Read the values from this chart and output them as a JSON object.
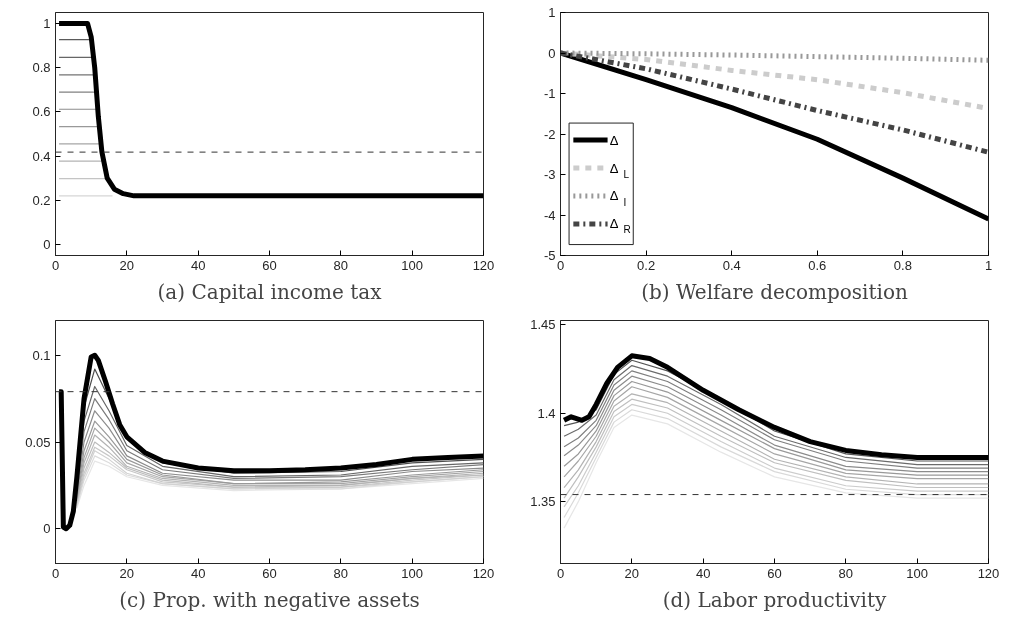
{
  "chart_data": [
    {
      "type": "line",
      "title": "(a) Capital income tax",
      "xlim": [
        0,
        120
      ],
      "ylim": [
        -0.05,
        1.05
      ],
      "xticks": [
        0,
        20,
        40,
        60,
        80,
        100,
        120
      ],
      "yticks": [
        0,
        0.2,
        0.4,
        0.6,
        0.8,
        1
      ],
      "grid": false,
      "legend": false,
      "line_style": "solid",
      "ref_lines": [
        {
          "axis": "y",
          "value": 0.418,
          "color": "#333333",
          "line_style": "dashed"
        }
      ],
      "series": [
        {
          "color": "#5a5a5a",
          "x": [
            1,
            10.1
          ],
          "values": [
            0.927,
            0.927
          ]
        },
        {
          "color": "#666666",
          "x": [
            1,
            10.6
          ],
          "values": [
            0.847,
            0.847
          ]
        },
        {
          "color": "#737373",
          "x": [
            1,
            11.1
          ],
          "values": [
            0.768,
            0.768
          ]
        },
        {
          "color": "#808080",
          "x": [
            1,
            11.5
          ],
          "values": [
            0.69,
            0.69
          ]
        },
        {
          "color": "#8c8c8c",
          "x": [
            1,
            11.9
          ],
          "values": [
            0.612,
            0.612
          ]
        },
        {
          "color": "#999999",
          "x": [
            1,
            12.3
          ],
          "values": [
            0.533,
            0.533
          ]
        },
        {
          "color": "#a6a6a6",
          "x": [
            1,
            12.8
          ],
          "values": [
            0.455,
            0.455
          ]
        },
        {
          "color": "#b3b3b3",
          "x": [
            1,
            13.4
          ],
          "values": [
            0.377,
            0.377
          ]
        },
        {
          "color": "#c4c4c4",
          "x": [
            1,
            14.5
          ],
          "values": [
            0.298,
            0.298
          ]
        },
        {
          "color": "#d6d6d6",
          "x": [
            1,
            16
          ],
          "values": [
            0.22,
            0.22
          ]
        },
        {
          "color": "#000000",
          "x": [
            1,
            9,
            10,
            11,
            12,
            13,
            14.5,
            16.5,
            19,
            22,
            120
          ],
          "values": [
            1,
            1,
            0.94,
            0.8,
            0.58,
            0.42,
            0.3,
            0.25,
            0.23,
            0.22,
            0.22
          ]
        }
      ]
    },
    {
      "type": "line",
      "title": "(b) Welfare decomposition",
      "xlim": [
        0,
        1
      ],
      "ylim": [
        -5,
        1
      ],
      "xticks": [
        0,
        0.2,
        0.4,
        0.6,
        0.8,
        1
      ],
      "yticks": [
        -5,
        -4,
        -3,
        -2,
        -1,
        0,
        1
      ],
      "grid": false,
      "legend": "bottom left",
      "series": [
        {
          "name": "Δ",
          "color": "#000000",
          "line_style": "solid",
          "x": [
            0,
            0.2,
            0.4,
            0.6,
            0.8,
            1
          ],
          "values": [
            0,
            -0.66,
            -1.35,
            -2.13,
            -3.09,
            -4.1
          ]
        },
        {
          "name": "Δ$_{L}$",
          "color": "#cccccc",
          "line_style": "dashed",
          "x": [
            0,
            0.2,
            0.4,
            0.6,
            0.8,
            1
          ],
          "values": [
            0,
            -0.16,
            -0.43,
            -0.66,
            -0.98,
            -1.37
          ]
        },
        {
          "name": "Δ$_{I}$",
          "color": "#999999",
          "line_style": "dotted",
          "x": [
            0,
            0.2,
            0.4,
            0.6,
            0.8,
            1
          ],
          "values": [
            0,
            -0.02,
            -0.05,
            -0.09,
            -0.13,
            -0.18
          ]
        },
        {
          "name": "Δ$_{R}$",
          "color": "#444444",
          "line_style": "dashdot",
          "x": [
            0,
            0.2,
            0.4,
            0.6,
            0.8,
            1
          ],
          "values": [
            0,
            -0.39,
            -0.89,
            -1.42,
            -1.9,
            -2.45
          ]
        }
      ]
    },
    {
      "type": "line",
      "title": "(c) Prop. with negative assets",
      "xlim": [
        0,
        120
      ],
      "ylim": [
        -0.02,
        0.12
      ],
      "xticks": [
        0,
        20,
        40,
        60,
        80,
        100,
        120
      ],
      "yticks": [
        0,
        0.05,
        0.1
      ],
      "grid": false,
      "legend": false,
      "line_style": "solid",
      "ref_lines": [
        {
          "axis": "y",
          "value": 0.079,
          "color": "#333333",
          "line_style": "dashed"
        }
      ],
      "series": [
        {
          "color": "#e6e6e6",
          "x": [
            6,
            8,
            11,
            15,
            20,
            30,
            50,
            80,
            100,
            120
          ],
          "values": [
            0.012,
            0.025,
            0.039,
            0.036,
            0.03,
            0.025,
            0.022,
            0.023,
            0.026,
            0.029
          ]
        },
        {
          "color": "#dcdcdc",
          "x": [
            6,
            8,
            11,
            15,
            20,
            30,
            50,
            80,
            100,
            120
          ],
          "values": [
            0.013,
            0.028,
            0.042,
            0.038,
            0.031,
            0.026,
            0.023,
            0.023,
            0.027,
            0.03
          ]
        },
        {
          "color": "#d2d2d2",
          "x": [
            6,
            8,
            11,
            15,
            20,
            30,
            50,
            80,
            100,
            120
          ],
          "values": [
            0.014,
            0.03,
            0.045,
            0.04,
            0.032,
            0.026,
            0.023,
            0.024,
            0.027,
            0.03
          ]
        },
        {
          "color": "#c8c8c8",
          "x": [
            6,
            8,
            11,
            15,
            20,
            30,
            50,
            80,
            100,
            120
          ],
          "values": [
            0.015,
            0.032,
            0.047,
            0.042,
            0.034,
            0.027,
            0.024,
            0.024,
            0.028,
            0.031
          ]
        },
        {
          "color": "#bdbdbd",
          "x": [
            6,
            8,
            11,
            15,
            20,
            30,
            50,
            80,
            100,
            120
          ],
          "values": [
            0.016,
            0.035,
            0.05,
            0.044,
            0.035,
            0.028,
            0.024,
            0.025,
            0.029,
            0.031
          ]
        },
        {
          "color": "#b3b3b3",
          "x": [
            6,
            8,
            11,
            15,
            20,
            30,
            50,
            80,
            100,
            120
          ],
          "values": [
            0.017,
            0.038,
            0.054,
            0.047,
            0.036,
            0.029,
            0.025,
            0.025,
            0.029,
            0.032
          ]
        },
        {
          "color": "#a6a6a6",
          "x": [
            6,
            8,
            11,
            15,
            20,
            30,
            50,
            80,
            100,
            120
          ],
          "values": [
            0.018,
            0.041,
            0.058,
            0.05,
            0.038,
            0.03,
            0.026,
            0.026,
            0.03,
            0.033
          ]
        },
        {
          "color": "#999999",
          "x": [
            6,
            8,
            11,
            15,
            20,
            30,
            50,
            80,
            100,
            120
          ],
          "values": [
            0.02,
            0.045,
            0.062,
            0.053,
            0.04,
            0.031,
            0.026,
            0.027,
            0.031,
            0.034
          ]
        },
        {
          "color": "#8c8c8c",
          "x": [
            6,
            8,
            11,
            15,
            20,
            30,
            50,
            80,
            100,
            120
          ],
          "values": [
            0.022,
            0.05,
            0.068,
            0.058,
            0.042,
            0.032,
            0.028,
            0.028,
            0.033,
            0.035
          ]
        },
        {
          "color": "#7a7a7a",
          "x": [
            6,
            8,
            11,
            15,
            20,
            30,
            50,
            80,
            100,
            120
          ],
          "values": [
            0.024,
            0.056,
            0.075,
            0.063,
            0.045,
            0.034,
            0.029,
            0.03,
            0.034,
            0.037
          ]
        },
        {
          "color": "#666666",
          "x": [
            6,
            8,
            11,
            15,
            20,
            30,
            50,
            80,
            100,
            120
          ],
          "values": [
            0.027,
            0.062,
            0.082,
            0.068,
            0.048,
            0.036,
            0.03,
            0.031,
            0.036,
            0.038
          ]
        },
        {
          "color": "#4d4d4d",
          "x": [
            6,
            8,
            11,
            15,
            20,
            30,
            50,
            80,
            100,
            120
          ],
          "values": [
            0.03,
            0.07,
            0.092,
            0.075,
            0.052,
            0.038,
            0.032,
            0.033,
            0.038,
            0.04
          ]
        },
        {
          "color": "#000000",
          "x": [
            1,
            1.6,
            2.2,
            3,
            4,
            5,
            6,
            8,
            10,
            11,
            12,
            14,
            16,
            18,
            20,
            25,
            30,
            40,
            50,
            60,
            70,
            80,
            90,
            100,
            110,
            120
          ],
          "values": [
            0.079,
            0.079,
            0.001,
            0,
            0.002,
            0.01,
            0.03,
            0.075,
            0.099,
            0.1,
            0.097,
            0.085,
            0.072,
            0.06,
            0.053,
            0.044,
            0.039,
            0.035,
            0.0335,
            0.0335,
            0.034,
            0.035,
            0.037,
            0.04,
            0.041,
            0.042
          ]
        }
      ]
    },
    {
      "type": "line",
      "title": "(d) Labor productivity",
      "xlim": [
        0,
        120
      ],
      "ylim": [
        1.315,
        1.4525
      ],
      "xticks": [
        0,
        20,
        40,
        60,
        80,
        100,
        120
      ],
      "yticks": [
        1.35,
        1.4,
        1.45
      ],
      "grid": false,
      "legend": false,
      "line_style": "solid",
      "ref_lines": [
        {
          "axis": "y",
          "value": 1.354,
          "color": "#333333",
          "line_style": "dashed"
        }
      ],
      "series": [
        {
          "color": "#e6e6e6",
          "x": [
            1,
            5,
            10,
            15,
            20,
            30,
            45,
            60,
            80,
            100,
            120
          ],
          "values": [
            1.335,
            1.35,
            1.372,
            1.392,
            1.399,
            1.394,
            1.378,
            1.364,
            1.355,
            1.352,
            1.352
          ]
        },
        {
          "color": "#d9d9d9",
          "x": [
            1,
            5,
            10,
            15,
            20,
            30,
            45,
            60,
            80,
            100,
            120
          ],
          "values": [
            1.341,
            1.355,
            1.375,
            1.395,
            1.402,
            1.397,
            1.381,
            1.367,
            1.357,
            1.354,
            1.354
          ]
        },
        {
          "color": "#cccccc",
          "x": [
            1,
            5,
            10,
            15,
            20,
            30,
            45,
            60,
            80,
            100,
            120
          ],
          "values": [
            1.347,
            1.359,
            1.378,
            1.398,
            1.405,
            1.4,
            1.384,
            1.369,
            1.359,
            1.356,
            1.356
          ]
        },
        {
          "color": "#bfbfbf",
          "x": [
            1,
            5,
            10,
            15,
            20,
            30,
            45,
            60,
            80,
            100,
            120
          ],
          "values": [
            1.352,
            1.364,
            1.381,
            1.401,
            1.408,
            1.403,
            1.387,
            1.372,
            1.362,
            1.358,
            1.358
          ]
        },
        {
          "color": "#b3b3b3",
          "x": [
            1,
            5,
            10,
            15,
            20,
            30,
            45,
            60,
            80,
            100,
            120
          ],
          "values": [
            1.358,
            1.368,
            1.384,
            1.404,
            1.411,
            1.406,
            1.39,
            1.374,
            1.364,
            1.36,
            1.36
          ]
        },
        {
          "color": "#a6a6a6",
          "x": [
            1,
            5,
            10,
            15,
            20,
            30,
            45,
            60,
            80,
            100,
            120
          ],
          "values": [
            1.364,
            1.373,
            1.387,
            1.407,
            1.415,
            1.409,
            1.393,
            1.377,
            1.366,
            1.363,
            1.363
          ]
        },
        {
          "color": "#999999",
          "x": [
            1,
            5,
            10,
            15,
            20,
            30,
            45,
            60,
            80,
            100,
            120
          ],
          "values": [
            1.37,
            1.377,
            1.39,
            1.41,
            1.418,
            1.412,
            1.396,
            1.38,
            1.368,
            1.365,
            1.365
          ]
        },
        {
          "color": "#8c8c8c",
          "x": [
            1,
            5,
            10,
            15,
            20,
            30,
            45,
            60,
            80,
            100,
            120
          ],
          "values": [
            1.376,
            1.382,
            1.393,
            1.413,
            1.421,
            1.415,
            1.399,
            1.382,
            1.37,
            1.367,
            1.367
          ]
        },
        {
          "color": "#7f7f7f",
          "x": [
            1,
            5,
            10,
            15,
            20,
            30,
            45,
            60,
            80,
            100,
            120
          ],
          "values": [
            1.381,
            1.386,
            1.396,
            1.416,
            1.424,
            1.418,
            1.402,
            1.385,
            1.373,
            1.369,
            1.369
          ]
        },
        {
          "color": "#6b6b6b",
          "x": [
            1,
            5,
            10,
            15,
            20,
            30,
            45,
            60,
            80,
            100,
            120
          ],
          "values": [
            1.387,
            1.391,
            1.399,
            1.419,
            1.427,
            1.421,
            1.405,
            1.387,
            1.375,
            1.371,
            1.371
          ]
        },
        {
          "color": "#555555",
          "x": [
            1,
            5,
            10,
            15,
            20,
            30,
            45,
            60,
            80,
            100,
            120
          ],
          "values": [
            1.393,
            1.395,
            1.402,
            1.422,
            1.43,
            1.424,
            1.408,
            1.39,
            1.377,
            1.373,
            1.373
          ]
        },
        {
          "color": "#000000",
          "x": [
            1,
            3,
            6,
            8,
            10,
            13,
            16,
            20,
            25,
            30,
            40,
            50,
            60,
            70,
            80,
            90,
            100,
            120
          ],
          "values": [
            1.396,
            1.398,
            1.396,
            1.398,
            1.405,
            1.417,
            1.426,
            1.4325,
            1.431,
            1.426,
            1.413,
            1.402,
            1.392,
            1.384,
            1.379,
            1.3765,
            1.375,
            1.375
          ]
        }
      ]
    }
  ]
}
